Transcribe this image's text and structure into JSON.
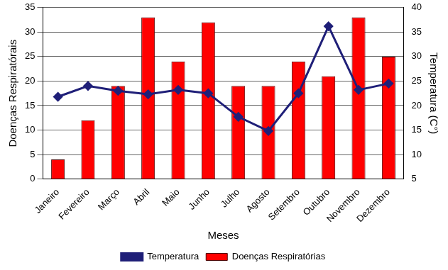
{
  "chart_data": {
    "type": "bar",
    "x_label": "Meses",
    "y_label": "Doenças Respiratórais",
    "y2_label": "Temperatura (C°)",
    "categories": [
      "Janeiro",
      "Fevereiro",
      "Março",
      "Abril",
      "Maio",
      "Junho",
      "Julho",
      "Agosto",
      "Setembro",
      "Outubro",
      "Novembro",
      "Dezembro"
    ],
    "series": [
      {
        "name": "Doenças Respiratórias",
        "type": "bar",
        "color": "#ff0000",
        "values": [
          4,
          12,
          19,
          33,
          24,
          32,
          19,
          19,
          24,
          21,
          33,
          25
        ]
      },
      {
        "name": "Temperatura",
        "type": "line",
        "color": "#1f1f78",
        "axis": "y2",
        "marker": "diamond",
        "values": [
          21.8,
          24,
          23,
          22.3,
          23.2,
          22.5,
          17.7,
          14.8,
          22.5,
          36.2,
          23.2,
          24.5
        ]
      }
    ],
    "ylim": [
      0,
      35
    ],
    "yticks": [
      0,
      5,
      10,
      15,
      20,
      25,
      30,
      35
    ],
    "y2lim": [
      5,
      40
    ],
    "y2ticks": [
      5,
      10,
      15,
      20,
      25,
      30,
      35,
      40
    ],
    "grid": true,
    "legend": "bottom"
  }
}
